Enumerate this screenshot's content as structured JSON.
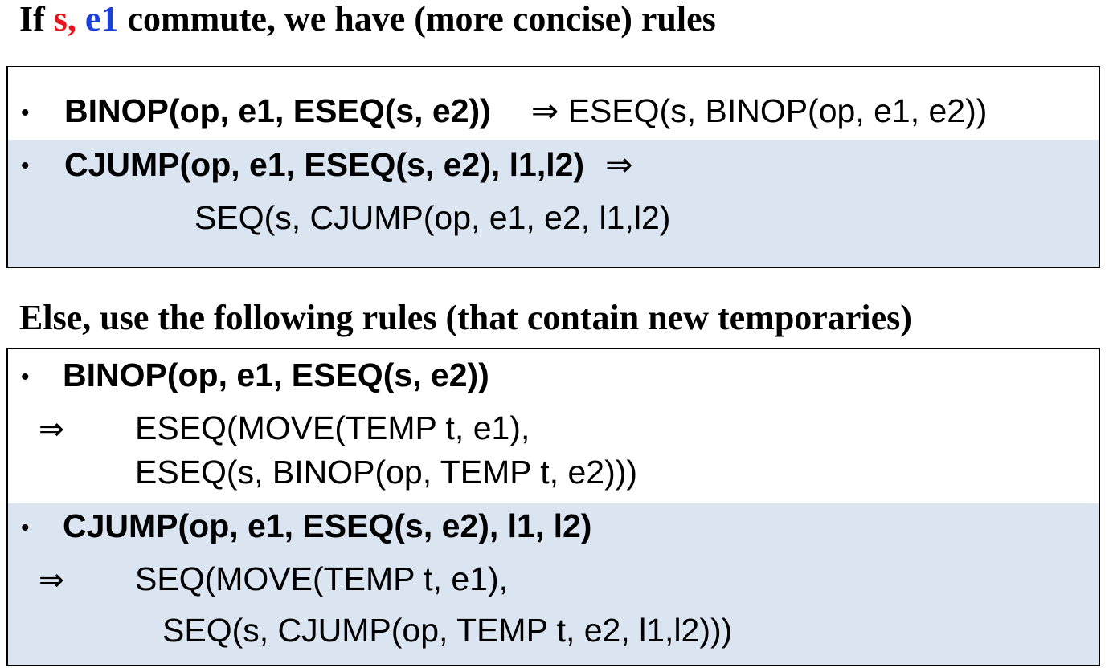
{
  "heading1": {
    "prefix": "If ",
    "var_s": "s,",
    "space": " ",
    "var_e1": "e1",
    "suffix": " commute, we have (more concise) rules"
  },
  "box1": {
    "rules": [
      {
        "bullet": "•",
        "lhs": "BINOP(op, e1, ESEQ(s, e2))",
        "arrow": "⇒",
        "rhs": "ESEQ(s, BINOP(op, e1, e2))"
      },
      {
        "bullet": "•",
        "lhs": "CJUMP(op, e1, ESEQ(s, e2), l1,l2)",
        "arrow": "⇒",
        "rhs": "SEQ(s, CJUMP(op, e1, e2, l1,l2)"
      }
    ]
  },
  "heading2": {
    "text": "Else,  use the following rules (that contain new temporaries)"
  },
  "box2": {
    "rules": [
      {
        "bullet": "•",
        "lhs": "BINOP(op, e1, ESEQ(s, e2))",
        "arrow": "⇒",
        "rhs_line1": "ESEQ(MOVE(TEMP t, e1),",
        "rhs_line2": "ESEQ(s, BINOP(op, TEMP t, e2)))"
      },
      {
        "bullet": "•",
        "lhs": "CJUMP(op, e1, ESEQ(s, e2), l1, l2)",
        "arrow": "⇒",
        "rhs_line1": "SEQ(MOVE(TEMP t, e1),",
        "rhs_line2": "SEQ(s, CJUMP(op, TEMP t, e2, l1,l2)))"
      }
    ]
  },
  "colors": {
    "s_highlight": "#e8141b",
    "e1_highlight": "#1c3fd6",
    "shade": "#dbe5f1"
  }
}
